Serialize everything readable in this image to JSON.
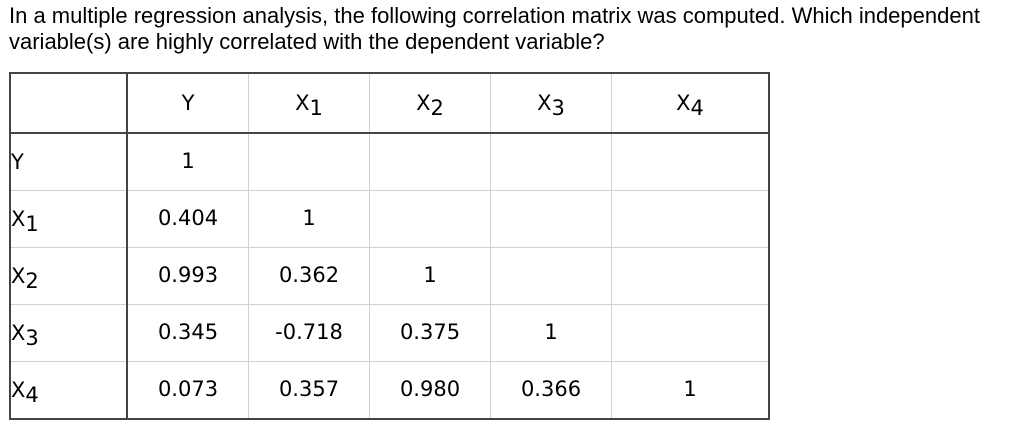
{
  "question": {
    "text": "In a multiple regression analysis, the following correlation matrix was computed. Which independent variable(s) are highly correlated with the dependent variable?"
  },
  "matrix": {
    "columns": [
      {
        "letter": "Y",
        "sub": ""
      },
      {
        "letter": "X",
        "sub": "1"
      },
      {
        "letter": "X",
        "sub": "2"
      },
      {
        "letter": "X",
        "sub": "3"
      },
      {
        "letter": "X",
        "sub": "4"
      }
    ],
    "rows": [
      {
        "label": {
          "letter": "Y",
          "sub": ""
        },
        "cells": [
          "1",
          "",
          "",
          "",
          ""
        ]
      },
      {
        "label": {
          "letter": "X",
          "sub": "1"
        },
        "cells": [
          "0.404",
          "1",
          "",
          "",
          ""
        ]
      },
      {
        "label": {
          "letter": "X",
          "sub": "2"
        },
        "cells": [
          "0.993",
          "0.362",
          "1",
          "",
          ""
        ]
      },
      {
        "label": {
          "letter": "X",
          "sub": "3"
        },
        "cells": [
          "0.345",
          "-0.718",
          "0.375",
          "1",
          ""
        ]
      },
      {
        "label": {
          "letter": "X",
          "sub": "4"
        },
        "cells": [
          "0.073",
          "0.357",
          "0.980",
          "0.366",
          "1"
        ]
      }
    ]
  }
}
